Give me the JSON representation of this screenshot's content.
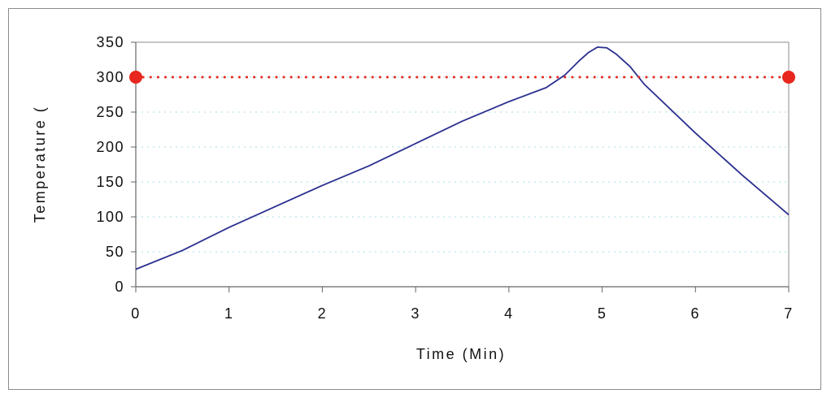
{
  "chart_data": {
    "type": "line",
    "title": "",
    "xlabel": "Time (Min)",
    "ylabel": "Temperature (",
    "xlim": [
      0,
      7
    ],
    "ylim": [
      0,
      350
    ],
    "x_ticks": [
      "0",
      "1",
      "2",
      "3",
      "4",
      "5",
      "6",
      "7"
    ],
    "y_ticks": [
      "0",
      "50",
      "100",
      "150",
      "200",
      "250",
      "300",
      "350"
    ],
    "grid": "horizontal dotted",
    "series": [
      {
        "color": "#2b2f8f",
        "x": [
          0,
          0.5,
          1,
          1.5,
          2,
          2.5,
          3,
          3.5,
          4,
          4.4,
          4.6,
          4.75,
          4.85,
          4.95,
          5.05,
          5.15,
          5.3,
          5.45,
          6,
          6.5,
          7
        ],
        "y": [
          25,
          52,
          85,
          115,
          145,
          173,
          205,
          237,
          265,
          285,
          303,
          323,
          335,
          343,
          342,
          333,
          315,
          290,
          220,
          160,
          103
        ]
      },
      {
        "color": "#e8271e",
        "style": "dotted",
        "marker": "circle",
        "x": [
          0,
          7
        ],
        "y": [
          300,
          300
        ]
      }
    ]
  }
}
